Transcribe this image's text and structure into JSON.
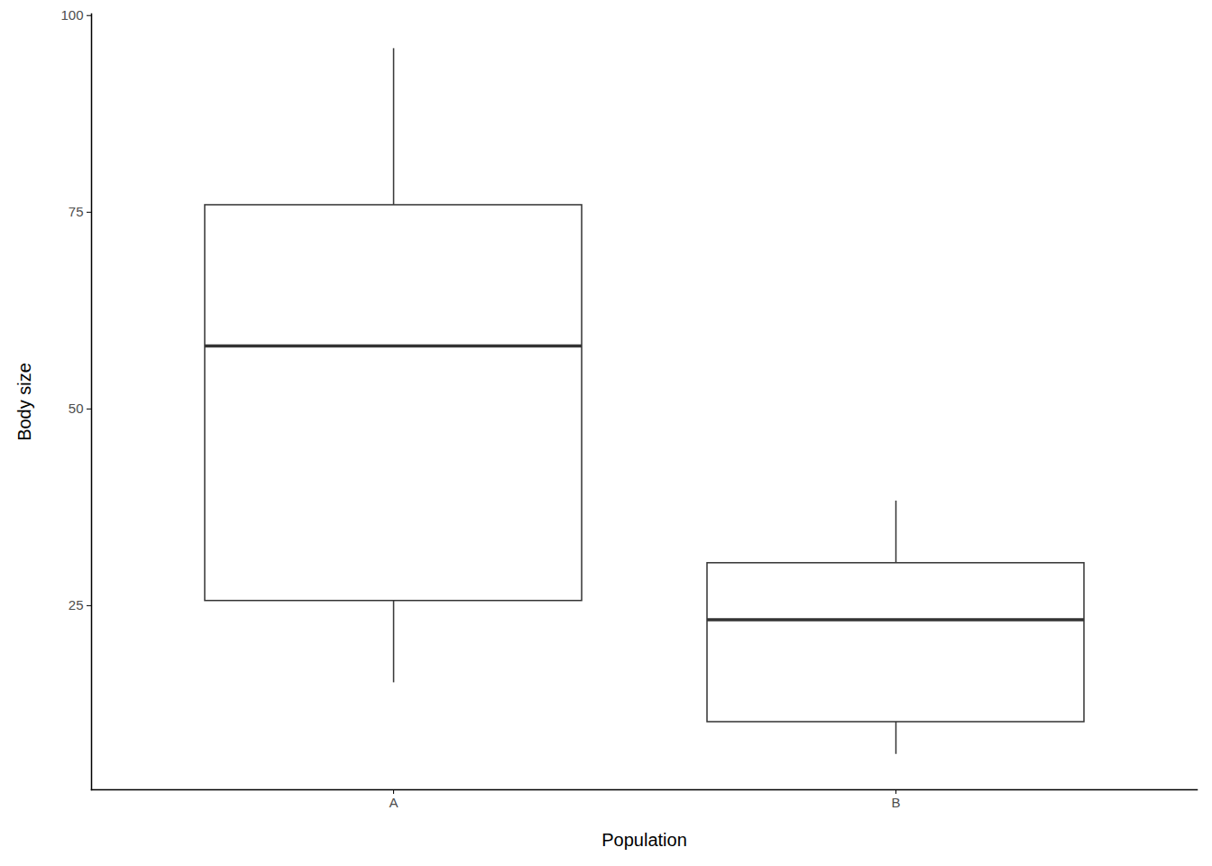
{
  "chart_data": {
    "type": "box",
    "categories": [
      "A",
      "B"
    ],
    "whisker_low": [
      15.2,
      6.1
    ],
    "q1": [
      25.6,
      10.2
    ],
    "median": [
      58.0,
      23.2
    ],
    "q3": [
      75.9,
      30.4
    ],
    "whisker_high": [
      95.8,
      38.3
    ],
    "xlabel": "Population",
    "ylabel": "Body size",
    "ylim": [
      1.6,
      100.2
    ],
    "yticks": [
      25,
      50,
      75,
      100
    ],
    "color": "#333333",
    "grid": false
  }
}
